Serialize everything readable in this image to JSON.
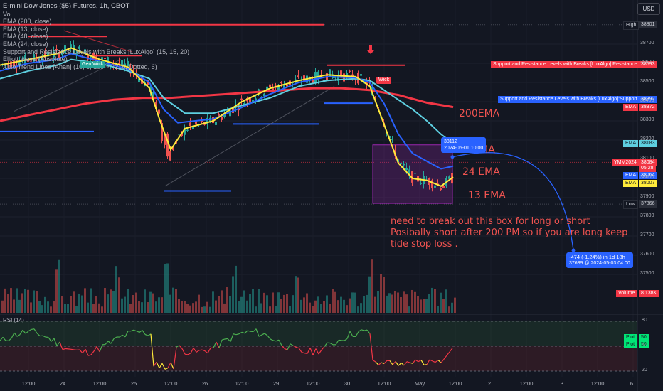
{
  "header": {
    "symbol_title": "E-mini Dow Jones ($5) Futures, 1h, CBOT",
    "currency": "USD"
  },
  "legend": [
    "Vol",
    "EMA (200, close)",
    "EMA (13, close)",
    "EMA (48, close)",
    "EMA (24, close)",
    "Support and Resistance Levels with Breaks [LuxAlgo] (15, 15, 20)",
    "Elliott Wave (Absolute)",
    "Auto Trend Lines [Anan] (10, 5, 100, 4, 2, 6, Dotted, 6)"
  ],
  "annotations": {
    "ema200": "200EMA",
    "ema48": "48 EMA",
    "ema24": "24 EMA",
    "ema13": "13 EMA",
    "note_lines": [
      "need to break out this box for long or short",
      "Posibally short after 200 PM so if you are long keep",
      "tide stop loss ."
    ],
    "wave_label": "Wick",
    "wave_label2": "Gen Wick"
  },
  "tooltips": {
    "crosshair_price": "38112",
    "crosshair_time": "2024-05-01 10:00",
    "projection_line1": "-474 (-1.24%) in 1d 18h",
    "projection_line2": "37639 @ 2024-05-03  04:00"
  },
  "price_tags": {
    "high_label": "High",
    "high_value": "38801",
    "resistance_label": "Support and Resistance Levels with Breaks [LuxAlgo]:Resistance",
    "resistance_value": "38593",
    "support_label": "Support and Resistance Levels with Breaks [LuxAlgo]:Support",
    "support_value": "38392",
    "ema200_label": "EMA",
    "ema200_value": "38372",
    "ema48_label": "EMA",
    "ema48_value": "38183",
    "symbol_label": "YMM2024",
    "last_value": "38084",
    "countdown": "05:28",
    "ema24_label": "EMA",
    "ema24_value": "38064",
    "ema13_label": "EMA",
    "ema13_value": "38007",
    "low_label": "Low",
    "low_value": "37866",
    "volume_label": "Volume",
    "volume_value": "8.138K",
    "rsi_plot1_label": "Plot",
    "rsi_plot1_value": "50",
    "rsi_plot2_label": "Plot",
    "rsi_plot2_value": "50"
  },
  "rsi_title": "RSI (14)",
  "colors": {
    "background": "#131722",
    "ema200": "#f23645",
    "ema48": "#5ecfe0",
    "ema24": "#2962ff",
    "ema13": "#ffeb3b",
    "up": "#26a69a",
    "down": "#ef5350",
    "box": "#9c27b0",
    "rsi_up": "#4caf50",
    "rsi_down": "#f23645"
  },
  "chart_data": {
    "type": "line",
    "title": "E-mini Dow Jones ($5) Futures, 1h, CBOT",
    "y_ticks": [
      38700,
      38600,
      38500,
      38400,
      38300,
      38200,
      38100,
      38000,
      37900,
      37800,
      37700,
      37600,
      37500
    ],
    "ylim": [
      37500,
      38850
    ],
    "x_ticks": [
      "12:00",
      "24",
      "12:00",
      "25",
      "12:00",
      "26",
      "12:00",
      "29",
      "12:00",
      "30",
      "12:00",
      "May",
      "12:00",
      "2",
      "12:00",
      "3",
      "12:00",
      "6"
    ],
    "rsi_ticks": [
      80,
      50,
      20
    ],
    "rsi_ylim": [
      10,
      90
    ],
    "series": [
      {
        "name": "EMA (200, close)",
        "x": [
          0,
          40,
          80,
          120,
          160,
          200,
          240,
          280,
          320,
          360,
          400,
          440,
          480,
          520,
          560,
          600,
          637
        ],
        "values": [
          38300,
          38330,
          38360,
          38390,
          38410,
          38420,
          38420,
          38430,
          38440,
          38450,
          38460,
          38470,
          38470,
          38460,
          38435,
          38395,
          38372
        ]
      },
      {
        "name": "EMA (48, close)",
        "x": [
          0,
          40,
          80,
          100,
          140,
          180,
          210,
          230,
          260,
          300,
          340,
          380,
          420,
          460,
          500,
          520,
          540,
          560,
          580,
          600,
          620,
          637
        ],
        "values": [
          38520,
          38560,
          38590,
          38620,
          38600,
          38560,
          38520,
          38420,
          38340,
          38340,
          38380,
          38420,
          38480,
          38510,
          38520,
          38510,
          38460,
          38410,
          38360,
          38300,
          38230,
          38183
        ]
      },
      {
        "name": "EMA (24, close)",
        "x": [
          0,
          40,
          80,
          100,
          140,
          180,
          210,
          230,
          250,
          300,
          340,
          380,
          420,
          460,
          500,
          520,
          540,
          560,
          580,
          600,
          620,
          637
        ],
        "values": [
          38560,
          38600,
          38620,
          38650,
          38610,
          38570,
          38500,
          38360,
          38290,
          38310,
          38370,
          38440,
          38500,
          38530,
          38525,
          38500,
          38390,
          38230,
          38130,
          38090,
          38050,
          38064
        ]
      },
      {
        "name": "EMA (13, close)",
        "x": [
          0,
          40,
          80,
          100,
          140,
          180,
          210,
          225,
          240,
          260,
          300,
          340,
          380,
          420,
          460,
          500,
          520,
          540,
          560,
          580,
          600,
          620,
          637
        ],
        "values": [
          38590,
          38620,
          38650,
          38680,
          38620,
          38580,
          38470,
          38300,
          38150,
          38260,
          38300,
          38400,
          38470,
          38510,
          38540,
          38530,
          38480,
          38280,
          38080,
          38000,
          37990,
          37960,
          38007
        ]
      }
    ],
    "levels": {
      "high": 38801,
      "resistance": 38593,
      "support": 38392,
      "low": 37866,
      "last": 38084
    },
    "projection": {
      "from_price": 38112,
      "to_price": 37639,
      "change": -474,
      "change_pct": -1.24
    }
  }
}
